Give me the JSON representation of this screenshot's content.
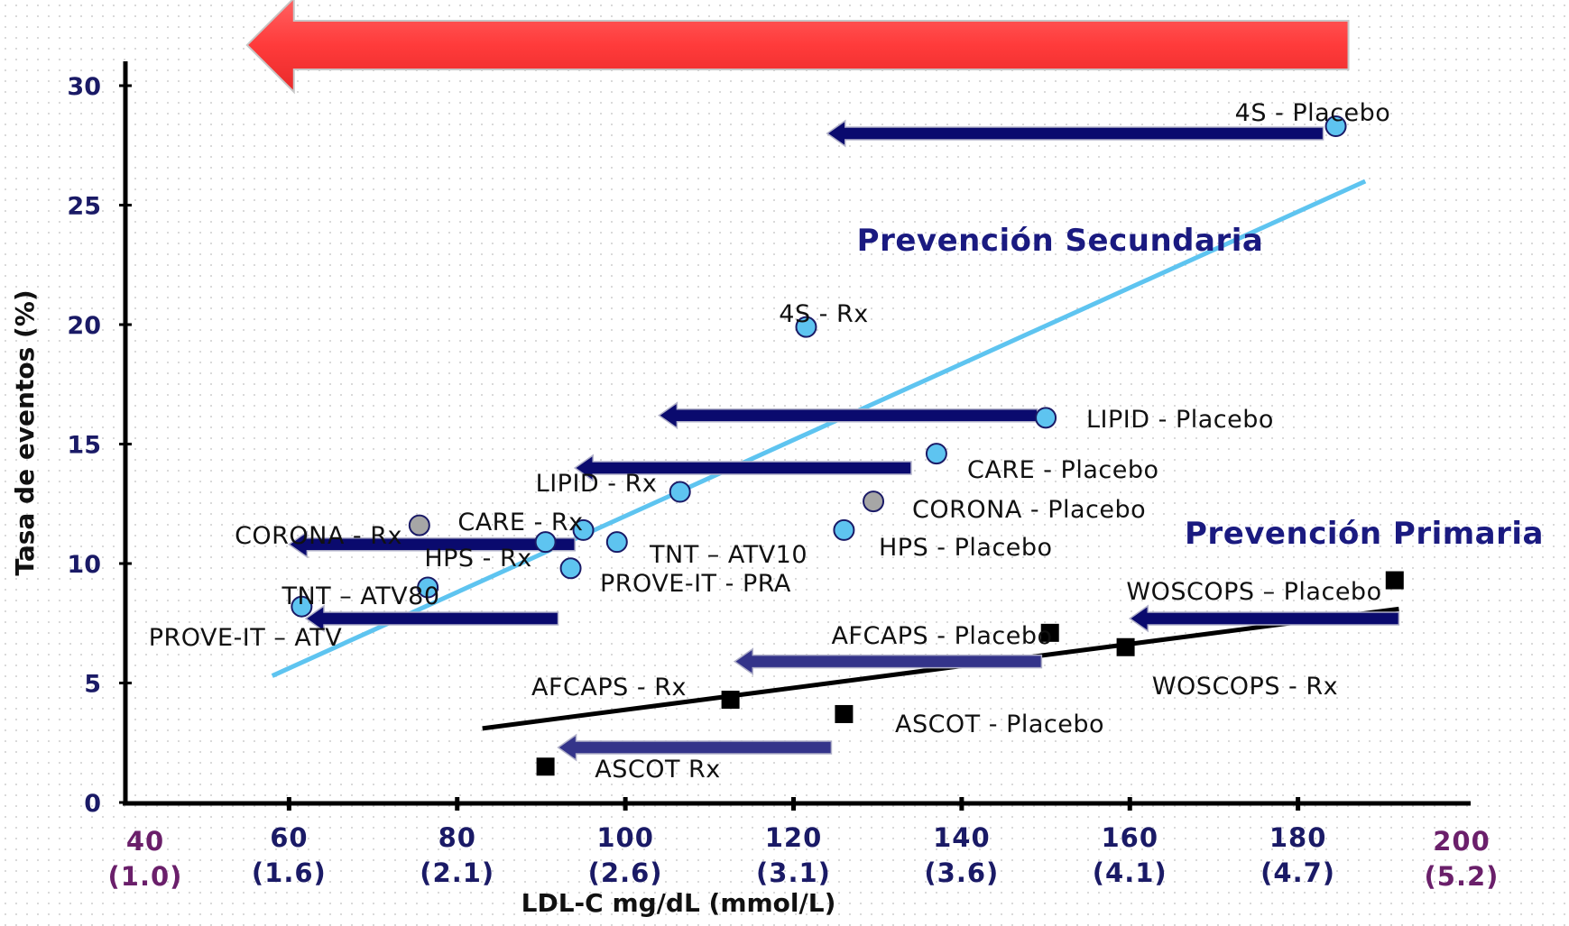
{
  "chart_data": {
    "type": "scatter",
    "title": "",
    "xlabel": "LDL-C mg/dL (mmol/L)",
    "ylabel": "Tasa de eventos (%)",
    "xlim": [
      40,
      200
    ],
    "ylim": [
      0,
      30
    ],
    "x_ticks": [
      {
        "value": 40,
        "label": "40",
        "sub": "(1.0)",
        "color": "#6a1f6a"
      },
      {
        "value": 60,
        "label": "60",
        "sub": "(1.6)",
        "color": "#1a1a66"
      },
      {
        "value": 80,
        "label": "80",
        "sub": "(2.1)",
        "color": "#1a1a66"
      },
      {
        "value": 100,
        "label": "100",
        "sub": "(2.6)",
        "color": "#1a1a66"
      },
      {
        "value": 120,
        "label": "120",
        "sub": "(3.1)",
        "color": "#1a1a66"
      },
      {
        "value": 140,
        "label": "140",
        "sub": "(3.6)",
        "color": "#1a1a66"
      },
      {
        "value": 160,
        "label": "160",
        "sub": "(4.1)",
        "color": "#1a1a66"
      },
      {
        "value": 180,
        "label": "180",
        "sub": "(4.7)",
        "color": "#1a1a66"
      },
      {
        "value": 200,
        "label": "200",
        "sub": "(5.2)",
        "color": "#6a1f6a"
      }
    ],
    "y_ticks": [
      {
        "value": 0,
        "label": "0"
      },
      {
        "value": 5,
        "label": "5"
      },
      {
        "value": 10,
        "label": "10"
      },
      {
        "value": 15,
        "label": "15"
      },
      {
        "value": 20,
        "label": "20"
      },
      {
        "value": 25,
        "label": "25"
      },
      {
        "value": 30,
        "label": "30"
      }
    ],
    "annotations": [
      {
        "text": "Prevención Secundaria",
        "x": 140,
        "y": 24.5
      },
      {
        "text": "Prevención Primaria",
        "x": 186,
        "y": 11.1
      }
    ],
    "series": [
      {
        "group": "secondary",
        "marker": "circle",
        "points": [
          {
            "label": "4S - Placebo",
            "x": 184.5,
            "y": 28.3
          },
          {
            "label": "4S - Rx",
            "x": 121.5,
            "y": 19.9
          },
          {
            "label": "LIPID - Placebo",
            "x": 150,
            "y": 16.1
          },
          {
            "label": "CARE - Placebo",
            "x": 137,
            "y": 14.6
          },
          {
            "label": "LIPID - Rx",
            "x": 106.5,
            "y": 13.0
          },
          {
            "label": "CORONA - Placebo",
            "x": 129.5,
            "y": 12.6,
            "color": "#a6a6a6"
          },
          {
            "label": "CARE - Rx",
            "x": 95,
            "y": 11.4
          },
          {
            "label": "CORONA - Rx",
            "x": 75.5,
            "y": 11.6,
            "color": "#a6a6a6"
          },
          {
            "label": "HPS - Placebo",
            "x": 126,
            "y": 11.4
          },
          {
            "label": "HPS - Rx",
            "x": 90.5,
            "y": 10.9
          },
          {
            "label": "TNT – ATV10",
            "x": 99,
            "y": 10.9
          },
          {
            "label": "PROVE-IT - PRA",
            "x": 93.5,
            "y": 9.8
          },
          {
            "label": "TNT – ATV80",
            "x": 76.5,
            "y": 9.0
          },
          {
            "label": "PROVE-IT – ATV",
            "x": 61.5,
            "y": 8.2
          }
        ]
      },
      {
        "group": "primary",
        "marker": "square",
        "points": [
          {
            "label": "WOSCOPS – Placebo",
            "x": 191.5,
            "y": 9.3
          },
          {
            "label": "AFCAPS - Placebo",
            "x": 150.5,
            "y": 7.1
          },
          {
            "label": "WOSCOPS - Rx",
            "x": 159.5,
            "y": 6.5
          },
          {
            "label": "AFCAPS - Rx",
            "x": 112.5,
            "y": 4.3
          },
          {
            "label": "ASCOT - Placebo",
            "x": 126,
            "y": 3.7
          },
          {
            "label": "ASCOT   Rx",
            "x": 90.5,
            "y": 1.5
          }
        ]
      }
    ],
    "trend_lines": [
      {
        "group": "secondary",
        "from": [
          58,
          5.3
        ],
        "to": [
          188,
          26.0
        ],
        "color": "#5ec4f0"
      },
      {
        "group": "primary",
        "from": [
          83,
          3.1
        ],
        "to": [
          192,
          8.1
        ],
        "color": "#000000"
      }
    ],
    "arrows": [
      {
        "from": [
          183,
          28.0
        ],
        "to": [
          124,
          28.0
        ],
        "color": "#0a0a6e"
      },
      {
        "from": [
          149,
          16.2
        ],
        "to": [
          104,
          16.2
        ],
        "color": "#0a0a6e"
      },
      {
        "from": [
          134,
          14.0
        ],
        "to": [
          94,
          14.0
        ],
        "color": "#0a0a6e"
      },
      {
        "from": [
          94,
          10.8
        ],
        "to": [
          60,
          10.8
        ],
        "color": "#0a0a6e"
      },
      {
        "from": [
          92,
          7.7
        ],
        "to": [
          62,
          7.7
        ],
        "color": "#0a0a6e"
      },
      {
        "from": [
          192,
          7.7
        ],
        "to": [
          160,
          7.7
        ],
        "color": "#0a0a6e"
      },
      {
        "from": [
          149.5,
          5.9
        ],
        "to": [
          113,
          5.9
        ],
        "color": "#34348a"
      },
      {
        "from": [
          124.5,
          2.3
        ],
        "to": [
          92,
          2.3
        ],
        "color": "#34348a"
      }
    ],
    "big_arrow": {
      "from": [
        186,
        31.7
      ],
      "to": [
        55,
        31.7
      ],
      "color": "#ff4040"
    }
  }
}
